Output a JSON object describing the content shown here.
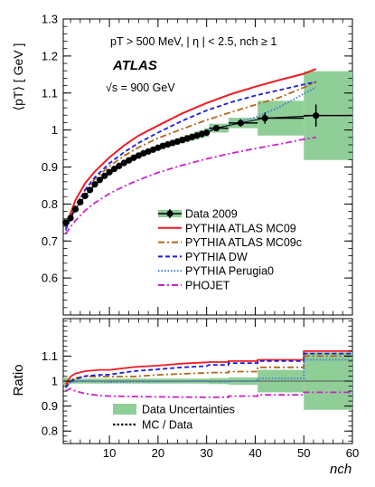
{
  "chart_data": [
    {
      "type": "line",
      "panel": "main",
      "ylabel": "⟨pT⟩ [ GeV ]",
      "conditions": "pT > 500 MeV, | η | < 2.5, nch ≥ 1",
      "experiment": "ATLAS",
      "energy": "√s = 900 GeV",
      "xlim": [
        0.5,
        60
      ],
      "ylim": [
        0.5,
        1.3
      ],
      "yticks": [
        "0.6",
        "0.7",
        "0.8",
        "0.9",
        "1",
        "1.1",
        "1.2",
        "1.3"
      ],
      "legend_position": "center-right",
      "data": {
        "name": "Data 2009",
        "x": [
          1,
          2,
          3,
          4,
          5,
          6,
          7,
          8,
          9,
          10,
          11,
          12,
          13,
          14,
          15,
          16,
          17,
          18,
          19,
          20,
          21,
          22,
          23,
          24,
          25,
          26,
          27,
          28,
          29,
          30,
          32,
          37,
          42,
          52.5
        ],
        "y": [
          0.75,
          0.762,
          0.786,
          0.805,
          0.822,
          0.838,
          0.853,
          0.865,
          0.876,
          0.886,
          0.895,
          0.903,
          0.911,
          0.918,
          0.925,
          0.931,
          0.937,
          0.942,
          0.947,
          0.952,
          0.957,
          0.961,
          0.965,
          0.969,
          0.973,
          0.977,
          0.981,
          0.985,
          0.989,
          0.993,
          1.005,
          1.019,
          1.032,
          1.039
        ],
        "bins": [
          [
            0.5,
            1.5
          ],
          [
            1.5,
            2.5
          ],
          [
            2.5,
            3.5
          ],
          [
            3.5,
            4.5
          ],
          [
            4.5,
            5.5
          ],
          [
            5.5,
            6.5
          ],
          [
            6.5,
            7.5
          ],
          [
            7.5,
            8.5
          ],
          [
            8.5,
            9.5
          ],
          [
            9.5,
            10.5
          ],
          [
            10.5,
            11.5
          ],
          [
            11.5,
            12.5
          ],
          [
            12.5,
            13.5
          ],
          [
            13.5,
            14.5
          ],
          [
            14.5,
            15.5
          ],
          [
            15.5,
            16.5
          ],
          [
            16.5,
            17.5
          ],
          [
            17.5,
            18.5
          ],
          [
            18.5,
            19.5
          ],
          [
            19.5,
            20.5
          ],
          [
            20.5,
            21.5
          ],
          [
            21.5,
            22.5
          ],
          [
            22.5,
            23.5
          ],
          [
            23.5,
            24.5
          ],
          [
            24.5,
            25.5
          ],
          [
            25.5,
            26.5
          ],
          [
            26.5,
            27.5
          ],
          [
            27.5,
            28.5
          ],
          [
            28.5,
            29.5
          ],
          [
            29.5,
            30.5
          ],
          [
            30.5,
            34.5
          ],
          [
            34.5,
            40.5
          ],
          [
            40.5,
            50
          ],
          [
            50,
            60
          ]
        ],
        "band_halfwidth": [
          0.006,
          0.006,
          0.006,
          0.006,
          0.006,
          0.006,
          0.006,
          0.006,
          0.006,
          0.006,
          0.006,
          0.006,
          0.006,
          0.006,
          0.006,
          0.006,
          0.007,
          0.007,
          0.007,
          0.007,
          0.008,
          0.008,
          0.008,
          0.009,
          0.009,
          0.01,
          0.01,
          0.011,
          0.011,
          0.012,
          0.012,
          0.014,
          0.047,
          0.12
        ],
        "stat_err": [
          0,
          0,
          0,
          0,
          0,
          0,
          0,
          0,
          0,
          0,
          0,
          0,
          0,
          0,
          0,
          0,
          0,
          0,
          0,
          0,
          0,
          0,
          0,
          0,
          0,
          0,
          0,
          0,
          0,
          0,
          0,
          0.01,
          0.015,
          0.03
        ]
      },
      "series": [
        {
          "name": "PYTHIA ATLAS MC09",
          "color": "#ee1c24",
          "dash": "solid",
          "x": [
            1,
            2,
            3,
            5,
            7,
            10,
            13,
            16,
            20,
            25,
            30,
            35,
            40,
            45,
            50,
            52.5
          ],
          "y": [
            0.74,
            0.775,
            0.81,
            0.856,
            0.888,
            0.926,
            0.958,
            0.985,
            1.012,
            1.045,
            1.073,
            1.097,
            1.117,
            1.135,
            1.152,
            1.165
          ]
        },
        {
          "name": "PYTHIA ATLAS MC09c",
          "color": "#b5651d",
          "dash": "dashdot",
          "x": [
            1,
            2,
            3,
            5,
            7,
            10,
            13,
            16,
            20,
            25,
            30,
            35,
            40,
            45,
            50,
            52.5
          ],
          "y": [
            0.735,
            0.765,
            0.795,
            0.838,
            0.868,
            0.902,
            0.93,
            0.953,
            0.978,
            1.003,
            1.027,
            1.048,
            1.068,
            1.088,
            1.115,
            1.13
          ]
        },
        {
          "name": "PYTHIA DW",
          "color": "#1d1ddd",
          "dash": "dashed",
          "x": [
            1,
            2,
            3,
            5,
            7,
            10,
            13,
            16,
            20,
            25,
            30,
            35,
            40,
            45,
            50,
            52.5
          ],
          "y": [
            0.73,
            0.76,
            0.792,
            0.838,
            0.872,
            0.91,
            0.94,
            0.965,
            0.993,
            1.025,
            1.053,
            1.075,
            1.093,
            1.108,
            1.123,
            1.13
          ]
        },
        {
          "name": "PYTHIA Perugia0",
          "color": "#3a7bd5",
          "dash": "dotted",
          "x": [
            1,
            2,
            3,
            5,
            7,
            10,
            13,
            16,
            20,
            25,
            30,
            35,
            40,
            45,
            50,
            52.5
          ],
          "y": [
            0.728,
            0.758,
            0.784,
            0.822,
            0.85,
            0.882,
            0.906,
            0.927,
            0.951,
            0.976,
            0.997,
            1.015,
            1.034,
            1.062,
            1.098,
            1.115
          ]
        },
        {
          "name": "PHOJET",
          "color": "#cc22cc",
          "dash": "dashdot",
          "x": [
            1,
            2,
            3,
            5,
            7,
            10,
            13,
            16,
            20,
            25,
            30,
            35,
            40,
            45,
            50,
            52.5
          ],
          "y": [
            0.72,
            0.738,
            0.755,
            0.782,
            0.803,
            0.828,
            0.848,
            0.865,
            0.885,
            0.905,
            0.922,
            0.937,
            0.95,
            0.962,
            0.975,
            0.98
          ]
        }
      ]
    },
    {
      "type": "line",
      "panel": "ratio",
      "ylabel": "Ratio",
      "xlabel": "nch",
      "xlim": [
        0.5,
        60
      ],
      "ylim": [
        0.75,
        1.25
      ],
      "xticks": [
        "10",
        "20",
        "30",
        "40",
        "50",
        "60"
      ],
      "yticks": [
        "0.8",
        "0.9",
        "1",
        "1.1"
      ],
      "reference_line": 1.0,
      "legend_position": "bottom-center",
      "legend": [
        "Data Uncertainties",
        "MC / Data"
      ],
      "band": {
        "name": "Data Uncertainties",
        "bins": [
          [
            0.5,
            1.5
          ],
          [
            1.5,
            30.5
          ],
          [
            30.5,
            34.5
          ],
          [
            34.5,
            40.5
          ],
          [
            40.5,
            50
          ],
          [
            50,
            60
          ]
        ],
        "lower": [
          0.985,
          0.99,
          0.988,
          0.985,
          0.955,
          0.885
        ],
        "upper": [
          1.015,
          1.01,
          1.012,
          1.015,
          1.045,
          1.115
        ]
      },
      "series": [
        {
          "name": "PYTHIA ATLAS MC09",
          "color": "#ee1c24",
          "dash": "solid",
          "x": [
            1,
            2,
            3,
            5,
            8,
            10,
            15,
            20,
            25,
            30
          ],
          "y": [
            0.987,
            1.018,
            1.03,
            1.04,
            1.045,
            1.045,
            1.056,
            1.062,
            1.07,
            1.075
          ],
          "steps": {
            "bins": [
              [
                30.5,
                34.5
              ],
              [
                34.5,
                40.5
              ],
              [
                40.5,
                50
              ],
              [
                50,
                60
              ]
            ],
            "y": [
              1.076,
              1.08,
              1.085,
              1.12
            ]
          }
        },
        {
          "name": "PYTHIA ATLAS MC09c",
          "color": "#b5651d",
          "dash": "dashdot",
          "x": [
            1,
            2,
            3,
            5,
            8,
            10,
            15,
            20,
            25,
            30
          ],
          "y": [
            0.98,
            1.004,
            1.012,
            1.019,
            1.018,
            1.018,
            1.018,
            1.025,
            1.029,
            1.033
          ],
          "steps": {
            "bins": [
              [
                30.5,
                34.5
              ],
              [
                34.5,
                40.5
              ],
              [
                40.5,
                50
              ],
              [
                50,
                60
              ]
            ],
            "y": [
              1.034,
              1.038,
              1.055,
              1.1
            ]
          }
        },
        {
          "name": "PYTHIA DW",
          "color": "#1d1ddd",
          "dash": "dashed",
          "x": [
            1,
            2,
            3,
            5,
            8,
            10,
            15,
            20,
            25,
            30
          ],
          "y": [
            0.975,
            0.998,
            1.008,
            1.02,
            1.025,
            1.026,
            1.04,
            1.047,
            1.055,
            1.06
          ],
          "steps": {
            "bins": [
              [
                30.5,
                34.5
              ],
              [
                34.5,
                40.5
              ],
              [
                40.5,
                50
              ],
              [
                50,
                60
              ]
            ],
            "y": [
              1.065,
              1.072,
              1.08,
              1.11
            ]
          }
        },
        {
          "name": "PYTHIA Perugia0",
          "color": "#3a7bd5",
          "dash": "dotted",
          "x": [
            1,
            2,
            3,
            5,
            8,
            10,
            15,
            20,
            25,
            30
          ],
          "y": [
            0.972,
            0.995,
            0.998,
            1.0,
            0.998,
            0.996,
            0.997,
            0.998,
            0.999,
            1.0
          ],
          "steps": {
            "bins": [
              [
                30.5,
                34.5
              ],
              [
                34.5,
                40.5
              ],
              [
                40.5,
                50
              ],
              [
                50,
                60
              ]
            ],
            "y": [
              0.998,
              1.0,
              1.01,
              1.085
            ]
          }
        },
        {
          "name": "PHOJET",
          "color": "#cc22cc",
          "dash": "dashdot",
          "x": [
            1,
            2,
            3,
            5,
            8,
            10,
            15,
            20,
            25,
            30
          ],
          "y": [
            0.96,
            0.97,
            0.96,
            0.95,
            0.942,
            0.94,
            0.938,
            0.937,
            0.936,
            0.935
          ],
          "steps": {
            "bins": [
              [
                30.5,
                34.5
              ],
              [
                34.5,
                40.5
              ],
              [
                40.5,
                50
              ],
              [
                50,
                60
              ]
            ],
            "y": [
              0.935,
              0.94,
              0.945,
              0.955
            ]
          }
        }
      ]
    }
  ]
}
